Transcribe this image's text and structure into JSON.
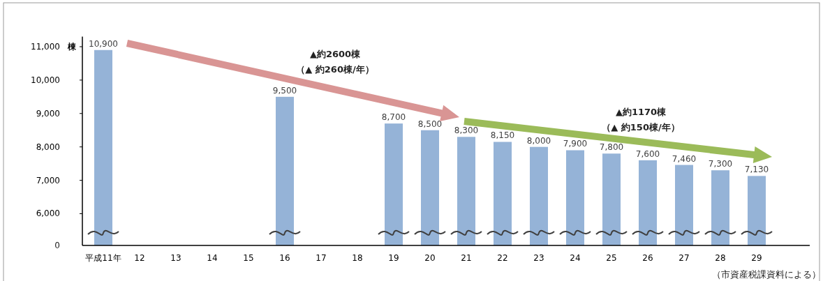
{
  "chart_data": {
    "type": "bar",
    "ylabel": "棟",
    "categories": [
      "平成11年",
      "12",
      "13",
      "14",
      "15",
      "16",
      "17",
      "18",
      "19",
      "20",
      "21",
      "22",
      "23",
      "24",
      "25",
      "26",
      "27",
      "28",
      "29"
    ],
    "values": [
      10900,
      null,
      null,
      null,
      null,
      9500,
      null,
      null,
      8700,
      8500,
      8300,
      8150,
      8000,
      7900,
      7800,
      7600,
      7460,
      7300,
      7130
    ],
    "color": "#95b3d7",
    "value_labels": [
      "10,900",
      null,
      null,
      null,
      null,
      "9,500",
      null,
      null,
      "8,700",
      "8,500",
      "8,300",
      "8,150",
      "8,000",
      "7,900",
      "7,800",
      "7,600",
      "7,460",
      "7,300",
      "7,130"
    ],
    "ylim": [
      5050,
      11300
    ],
    "yticks": [
      {
        "value": 6000,
        "label": "6,000"
      },
      {
        "value": 7000,
        "label": "7,000"
      },
      {
        "value": 8000,
        "label": "8,000"
      },
      {
        "value": 9000,
        "label": "9,000"
      },
      {
        "value": 10000,
        "label": "10,000"
      },
      {
        "value": 11000,
        "label": "11,000"
      }
    ],
    "annotations": [
      "0",
      "▲約2600棟",
      "（▲ 約260棟/年）",
      "▲約1170棟",
      "（▲ 約150棟/年）",
      "（市資産税課資料による）"
    ]
  }
}
